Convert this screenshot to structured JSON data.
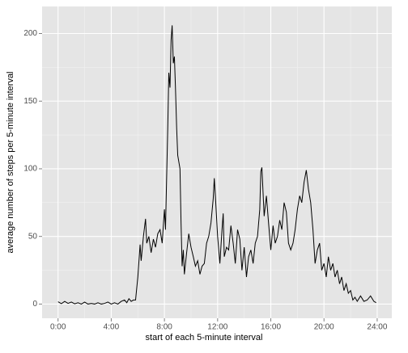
{
  "chart_data": {
    "type": "line",
    "xlabel": "start of each 5-minute interval",
    "ylabel": "average number of steps per 5-minute interval",
    "x": [
      0,
      0.25,
      0.5,
      0.75,
      1,
      1.25,
      1.5,
      1.75,
      2,
      2.25,
      2.5,
      2.75,
      3,
      3.25,
      3.5,
      3.75,
      4,
      4.25,
      4.5,
      4.75,
      5,
      5.17,
      5.33,
      5.5,
      5.67,
      5.83,
      6,
      6.17,
      6.25,
      6.42,
      6.58,
      6.67,
      6.83,
      7,
      7.17,
      7.33,
      7.5,
      7.67,
      7.83,
      8,
      8.08,
      8.17,
      8.25,
      8.33,
      8.42,
      8.5,
      8.58,
      8.67,
      8.75,
      8.83,
      8.92,
      9,
      9.17,
      9.25,
      9.33,
      9.42,
      9.5,
      9.67,
      9.83,
      10,
      10.17,
      10.33,
      10.5,
      10.67,
      10.83,
      11,
      11.17,
      11.33,
      11.5,
      11.67,
      11.75,
      11.83,
      12,
      12.17,
      12.33,
      12.42,
      12.5,
      12.67,
      12.83,
      13,
      13.17,
      13.33,
      13.5,
      13.67,
      13.83,
      14,
      14.17,
      14.33,
      14.5,
      14.67,
      14.83,
      15,
      15.17,
      15.25,
      15.33,
      15.5,
      15.67,
      15.83,
      16,
      16.17,
      16.33,
      16.5,
      16.67,
      16.83,
      17,
      17.17,
      17.33,
      17.5,
      17.67,
      17.83,
      18,
      18.17,
      18.33,
      18.5,
      18.67,
      18.83,
      19,
      19.17,
      19.33,
      19.5,
      19.67,
      19.83,
      20,
      20.17,
      20.33,
      20.5,
      20.67,
      20.83,
      21,
      21.17,
      21.33,
      21.5,
      21.67,
      21.83,
      22,
      22.17,
      22.33,
      22.5,
      22.75,
      23,
      23.25,
      23.5,
      23.75,
      23.92
    ],
    "series": [
      {
        "name": "steps",
        "color": "#000000",
        "values": [
          1.7,
          0.3,
          2,
          0.5,
          1.5,
          0.2,
          1,
          0,
          1.5,
          0,
          0.5,
          0,
          1,
          0,
          0.5,
          1.5,
          0,
          1,
          0,
          2,
          3,
          1,
          4,
          2,
          3,
          3,
          20,
          44,
          32,
          50,
          63,
          45,
          50,
          38,
          48,
          42,
          52,
          55,
          45,
          70,
          55,
          95,
          130,
          171,
          160,
          195,
          206,
          178,
          183,
          160,
          130,
          110,
          100,
          60,
          28,
          40,
          22,
          38,
          52,
          42,
          35,
          28,
          32,
          22,
          28,
          30,
          45,
          50,
          60,
          78,
          93,
          80,
          50,
          30,
          55,
          67,
          35,
          42,
          40,
          58,
          45,
          30,
          55,
          48,
          25,
          42,
          20,
          35,
          40,
          30,
          45,
          50,
          70,
          98,
          101,
          65,
          80,
          60,
          40,
          58,
          45,
          50,
          62,
          55,
          75,
          68,
          45,
          40,
          45,
          55,
          70,
          80,
          75,
          90,
          99,
          85,
          75,
          55,
          30,
          40,
          45,
          25,
          30,
          20,
          35,
          25,
          30,
          20,
          25,
          15,
          20,
          10,
          15,
          8,
          10,
          3,
          5,
          2,
          6,
          2,
          3,
          6,
          2,
          1
        ]
      }
    ],
    "xlim": [
      -1.2,
      25.1
    ],
    "xticks": [
      {
        "value": 0,
        "label": "0:00"
      },
      {
        "value": 4,
        "label": "4:00"
      },
      {
        "value": 8,
        "label": "8:00"
      },
      {
        "value": 12,
        "label": "12:00"
      },
      {
        "value": 16,
        "label": "16:00"
      },
      {
        "value": 20,
        "label": "20:00"
      },
      {
        "value": 24,
        "label": "24:00"
      }
    ],
    "minor_xticks": [
      2,
      6,
      10,
      14,
      18,
      22
    ],
    "ylim": [
      -10.5,
      220
    ],
    "yticks": [
      0,
      50,
      100,
      150,
      200
    ],
    "minor_yticks": [
      25,
      75,
      125,
      175
    ],
    "grid": true
  }
}
